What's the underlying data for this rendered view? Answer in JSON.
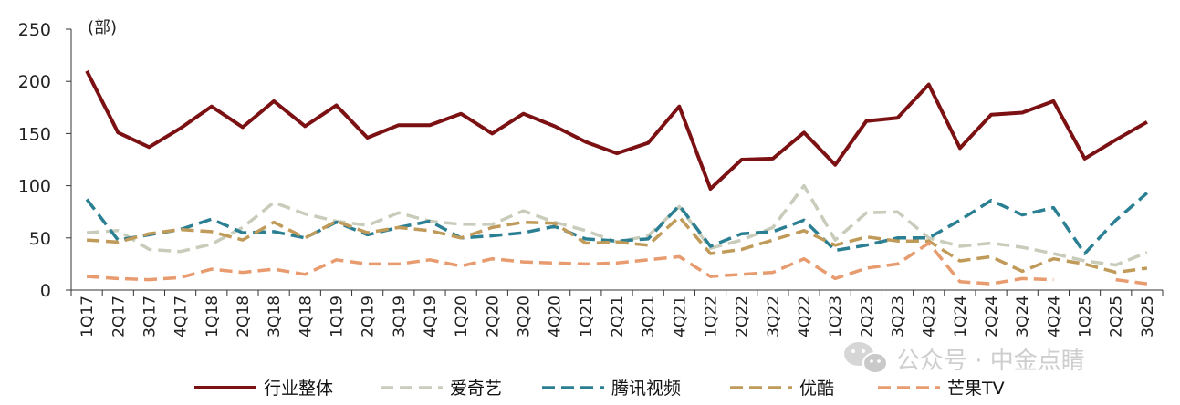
{
  "chart_data": {
    "type": "line",
    "unit_label": "(部)",
    "ylim": [
      0,
      250
    ],
    "yticks": [
      0,
      50,
      100,
      150,
      200,
      250
    ],
    "grid": false,
    "legend_position": "bottom",
    "x": [
      "1Q17",
      "2Q17",
      "3Q17",
      "4Q17",
      "1Q18",
      "2Q18",
      "3Q18",
      "4Q18",
      "1Q19",
      "2Q19",
      "3Q19",
      "4Q19",
      "1Q20",
      "2Q20",
      "3Q20",
      "4Q20",
      "1Q21",
      "2Q21",
      "3Q21",
      "4Q21",
      "1Q22",
      "2Q22",
      "3Q22",
      "4Q22",
      "1Q23",
      "2Q23",
      "3Q23",
      "4Q23",
      "1Q24",
      "2Q24",
      "3Q24",
      "4Q24",
      "1Q25",
      "2Q25",
      "3Q25"
    ],
    "series": [
      {
        "name": "行业整体",
        "color": "#7b1113",
        "dash": "solid",
        "values": [
          210,
          151,
          137,
          155,
          176,
          156,
          181,
          157,
          177,
          146,
          158,
          158,
          169,
          150,
          169,
          157,
          142,
          131,
          141,
          176,
          97,
          125,
          126,
          151,
          120,
          162,
          165,
          197,
          136,
          168,
          170,
          181,
          126,
          144,
          161
        ]
      },
      {
        "name": "爱奇艺",
        "color": "#c8ccba",
        "dash": "dashed",
        "values": [
          55,
          57,
          39,
          37,
          44,
          60,
          84,
          73,
          66,
          62,
          74,
          66,
          63,
          63,
          76,
          65,
          57,
          46,
          52,
          80,
          40,
          48,
          60,
          100,
          48,
          74,
          75,
          50,
          42,
          45,
          41,
          35,
          28,
          24,
          36
        ]
      },
      {
        "name": "腾讯视频",
        "color": "#2b7f93",
        "dash": "dashed",
        "values": [
          87,
          48,
          53,
          58,
          68,
          55,
          56,
          50,
          65,
          53,
          60,
          66,
          50,
          52,
          55,
          61,
          49,
          47,
          49,
          81,
          42,
          54,
          56,
          67,
          38,
          43,
          50,
          50,
          67,
          86,
          72,
          79,
          35,
          67,
          93
        ]
      },
      {
        "name": "优酷",
        "color": "#c09a58",
        "dash": "dashed",
        "values": [
          48,
          46,
          54,
          58,
          56,
          48,
          65,
          50,
          66,
          55,
          60,
          57,
          50,
          60,
          65,
          64,
          45,
          46,
          43,
          70,
          35,
          39,
          48,
          57,
          43,
          51,
          47,
          47,
          28,
          32,
          18,
          30,
          25,
          17,
          21
        ]
      },
      {
        "name": "芒果TV",
        "color": "#e79b6e",
        "dash": "dashed",
        "values": [
          13,
          11,
          10,
          12,
          20,
          17,
          20,
          15,
          29,
          25,
          25,
          29,
          23,
          30,
          27,
          26,
          25,
          26,
          29,
          32,
          13,
          15,
          17,
          30,
          11,
          21,
          25,
          45,
          8,
          6,
          11,
          10,
          null,
          10,
          6
        ]
      }
    ]
  },
  "watermark": {
    "text": "公众号 · 中金点睛",
    "icon": "wechat-icon"
  }
}
